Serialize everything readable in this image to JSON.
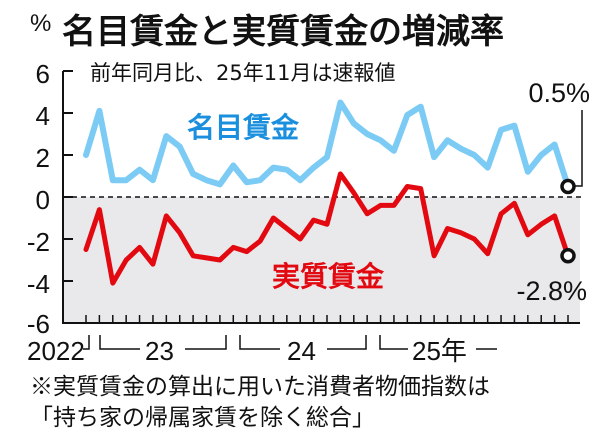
{
  "header": {
    "unit": "%",
    "title": "名目賃金と実質賃金の増減率",
    "subtitle": "前年同月比、25年11月は速報値"
  },
  "axis": {
    "y_ticks": [
      "6",
      "4",
      "2",
      "0",
      "-2",
      "-4",
      "-6"
    ],
    "x_labels": [
      "2022",
      "23",
      "24",
      "25年"
    ]
  },
  "labels": {
    "nominal": "名目賃金",
    "real": "実質賃金",
    "nominal_end": "0.5%",
    "real_end": "-2.8%"
  },
  "notes": {
    "line1": "※実質賃金の算出に用いた消費者物価指数は",
    "line2": "「持ち家の帰属家賃を除く総合」"
  },
  "colors": {
    "nominal": "#7ccbf5",
    "nominal_label": "#1a8fde",
    "real": "#e20a10",
    "negative_bg": "#e9e9ec"
  },
  "chart_data": {
    "type": "line",
    "title": "名目賃金と実質賃金の増減率",
    "subtitle": "前年同月比、25年11月は速報値",
    "xlabel": "",
    "ylabel": "%",
    "ylim": [
      -6,
      6
    ],
    "y_ticks": [
      -6,
      -4,
      -2,
      0,
      2,
      4,
      6
    ],
    "x_tick_labels": [
      "2022",
      "23",
      "24",
      "25年"
    ],
    "x": [
      "2022-11",
      "2022-12",
      "2023-01",
      "2023-02",
      "2023-03",
      "2023-04",
      "2023-05",
      "2023-06",
      "2023-07",
      "2023-08",
      "2023-09",
      "2023-10",
      "2023-11",
      "2023-12",
      "2024-01",
      "2024-02",
      "2024-03",
      "2024-04",
      "2024-05",
      "2024-06",
      "2024-07",
      "2024-08",
      "2024-09",
      "2024-10",
      "2024-11",
      "2024-12",
      "2025-01",
      "2025-02",
      "2025-03",
      "2025-04",
      "2025-05",
      "2025-06",
      "2025-07",
      "2025-08",
      "2025-09",
      "2025-10",
      "2025-11"
    ],
    "series": [
      {
        "name": "名目賃金",
        "color": "#7ccbf5",
        "values": [
          2.0,
          4.1,
          0.8,
          0.8,
          1.3,
          0.8,
          2.9,
          2.4,
          1.1,
          0.8,
          0.6,
          1.5,
          0.7,
          0.8,
          1.4,
          1.3,
          0.8,
          1.4,
          1.9,
          4.5,
          3.5,
          3.0,
          2.7,
          2.2,
          3.9,
          4.3,
          1.9,
          2.7,
          2.3,
          2.0,
          1.4,
          3.2,
          3.4,
          1.2,
          2.0,
          2.5,
          0.5
        ]
      },
      {
        "name": "実質賃金",
        "color": "#e20a10",
        "values": [
          -2.5,
          -0.6,
          -4.1,
          -3.0,
          -2.4,
          -3.2,
          -0.9,
          -1.7,
          -2.8,
          -2.9,
          -3.0,
          -2.4,
          -2.6,
          -2.1,
          -1.0,
          -1.5,
          -2.0,
          -1.1,
          -1.3,
          1.1,
          0.2,
          -0.8,
          -0.4,
          -0.4,
          0.5,
          0.4,
          -2.8,
          -1.5,
          -1.7,
          -2.0,
          -2.7,
          -0.8,
          -0.3,
          -1.8,
          -1.3,
          -0.9,
          -2.8
        ]
      }
    ],
    "annotations": [
      {
        "series": "名目賃金",
        "x": "2025-11",
        "text": "0.5%"
      },
      {
        "series": "実質賃金",
        "x": "2025-11",
        "text": "-2.8%"
      }
    ],
    "note": "※実質賃金の算出に用いた消費者物価指数は「持ち家の帰属家賃を除く総合」",
    "legend": "inline labels",
    "grid": false
  }
}
